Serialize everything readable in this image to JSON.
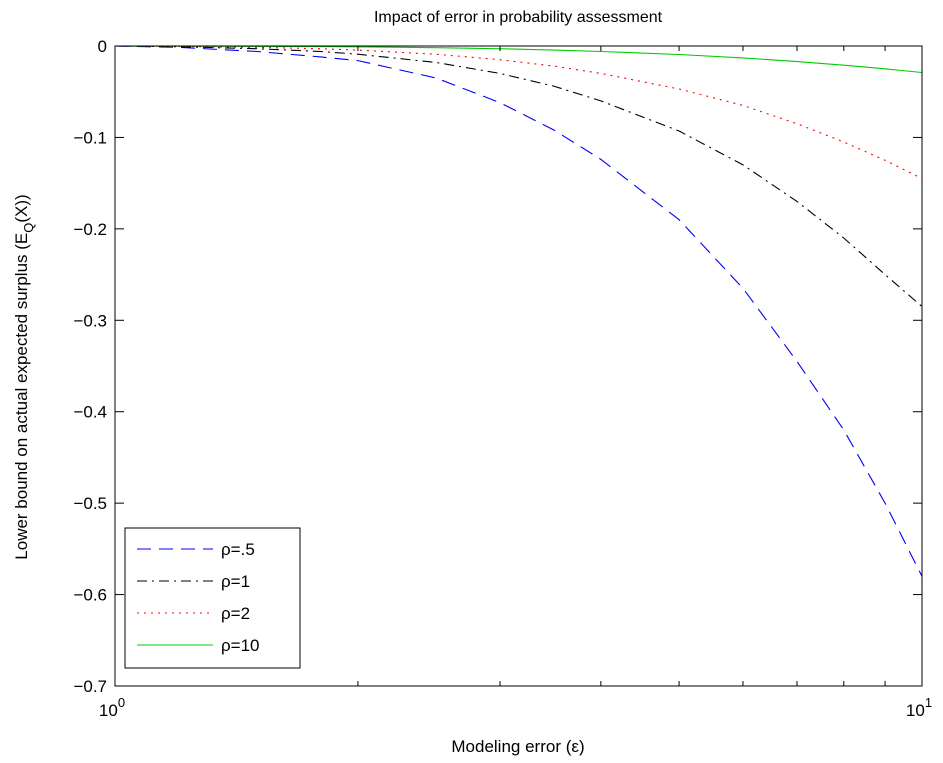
{
  "chart_data": {
    "type": "line",
    "title": "Impact of error in probability assessment",
    "xlabel": "Modeling error (ε)",
    "ylabel": "Lower bound on actual expected surplus (E_Q(X))",
    "ylabel_parts": {
      "main": "Lower bound on actual expected surplus (E",
      "sub": "Q",
      "tail": "(X))"
    },
    "x_scale": "log",
    "xlim": [
      1,
      10
    ],
    "ylim": [
      -0.7,
      0
    ],
    "x_ticks": [
      {
        "value": 1,
        "base": "10",
        "exp": "0"
      },
      {
        "value": 10,
        "base": "10",
        "exp": "1"
      }
    ],
    "y_ticks": [
      {
        "value": 0,
        "label": "0"
      },
      {
        "value": -0.1,
        "label": "−0.1"
      },
      {
        "value": -0.2,
        "label": "−0.2"
      },
      {
        "value": -0.3,
        "label": "−0.3"
      },
      {
        "value": -0.4,
        "label": "−0.4"
      },
      {
        "value": -0.5,
        "label": "−0.5"
      },
      {
        "value": -0.6,
        "label": "−0.6"
      },
      {
        "value": -0.7,
        "label": "−0.7"
      }
    ],
    "grid": false,
    "legend_position": "bottom-left",
    "series": [
      {
        "name": "ρ=.5",
        "color": "#0000ff",
        "style": "dashed",
        "x": [
          1,
          1.2,
          1.5,
          1.8,
          2,
          2.5,
          3,
          3.5,
          4,
          5,
          6,
          7,
          8,
          9,
          10
        ],
        "values": [
          0,
          -0.0015,
          -0.006,
          -0.012,
          -0.016,
          -0.035,
          -0.062,
          -0.092,
          -0.124,
          -0.19,
          -0.265,
          -0.345,
          -0.42,
          -0.5,
          -0.58
        ]
      },
      {
        "name": "ρ=1",
        "color": "#000000",
        "style": "dashdot",
        "x": [
          1,
          1.2,
          1.5,
          1.8,
          2,
          2.5,
          3,
          3.5,
          4,
          5,
          6,
          7,
          8,
          9,
          10
        ],
        "values": [
          0,
          -0.0008,
          -0.003,
          -0.006,
          -0.009,
          -0.018,
          -0.03,
          -0.044,
          -0.06,
          -0.093,
          -0.13,
          -0.17,
          -0.21,
          -0.25,
          -0.285
        ]
      },
      {
        "name": "ρ=2",
        "color": "#ff0000",
        "style": "dotted",
        "x": [
          1,
          1.2,
          1.5,
          1.8,
          2,
          2.5,
          3,
          3.5,
          4,
          5,
          6,
          7,
          8,
          9,
          10
        ],
        "values": [
          0,
          -0.0004,
          -0.0015,
          -0.003,
          -0.0045,
          -0.009,
          -0.015,
          -0.022,
          -0.03,
          -0.047,
          -0.065,
          -0.085,
          -0.105,
          -0.125,
          -0.145
        ]
      },
      {
        "name": "ρ=10",
        "color": "#00cc00",
        "style": "solid",
        "x": [
          1,
          1.2,
          1.5,
          1.8,
          2,
          2.5,
          3,
          3.5,
          4,
          5,
          6,
          7,
          8,
          9,
          10
        ],
        "values": [
          0,
          -0.0001,
          -0.0003,
          -0.0006,
          -0.0009,
          -0.0018,
          -0.003,
          -0.0044,
          -0.006,
          -0.0093,
          -0.013,
          -0.017,
          -0.021,
          -0.025,
          -0.029
        ]
      }
    ]
  }
}
